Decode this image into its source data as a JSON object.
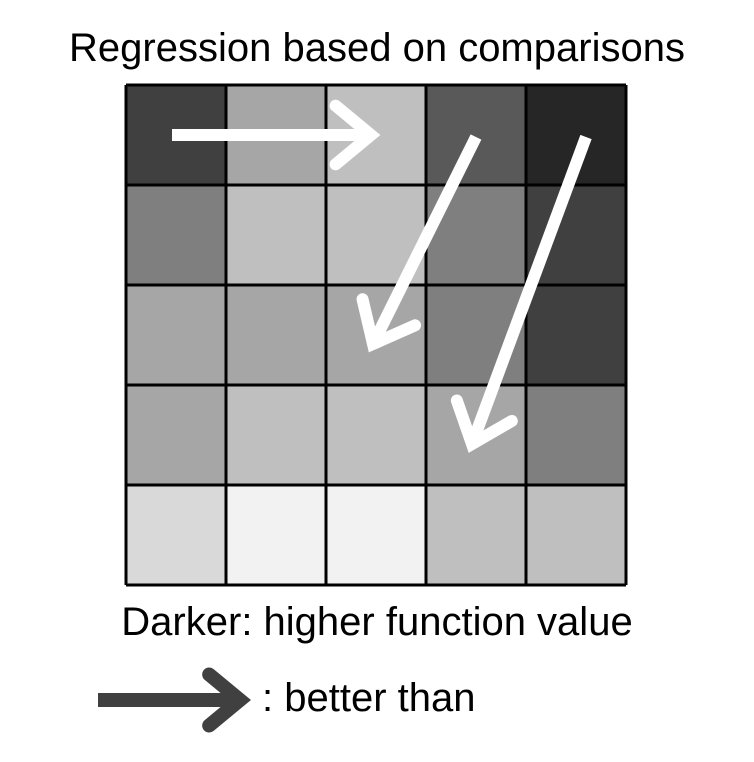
{
  "title": "Regression based on comparisons",
  "grid": {
    "rows": 5,
    "cols": 5,
    "cell_colors": [
      [
        "#404040",
        "#a6a6a6",
        "#bfbfbf",
        "#595959",
        "#262626"
      ],
      [
        "#7f7f7f",
        "#bfbfbf",
        "#bfbfbf",
        "#7f7f7f",
        "#404040"
      ],
      [
        "#a6a6a6",
        "#a6a6a6",
        "#a6a6a6",
        "#7f7f7f",
        "#404040"
      ],
      [
        "#a6a6a6",
        "#bfbfbf",
        "#bfbfbf",
        "#a6a6a6",
        "#7f7f7f"
      ],
      [
        "#d9d9d9",
        "#f2f2f2",
        "#f2f2f2",
        "#bfbfbf",
        "#bfbfbf"
      ]
    ],
    "border_color": "#000000",
    "arrow_color": "#ffffff"
  },
  "comparisons": [
    {
      "from": [
        0,
        0
      ],
      "to": [
        0,
        2
      ]
    },
    {
      "from": [
        0,
        3
      ],
      "to": [
        2,
        2
      ]
    },
    {
      "from": [
        0,
        4
      ],
      "to": [
        3,
        3
      ]
    }
  ],
  "caption": "Darker: higher function value",
  "legend": {
    "label": ": better than",
    "arrow_color": "#404040",
    "arrow_icon": "right-arrow-icon"
  }
}
